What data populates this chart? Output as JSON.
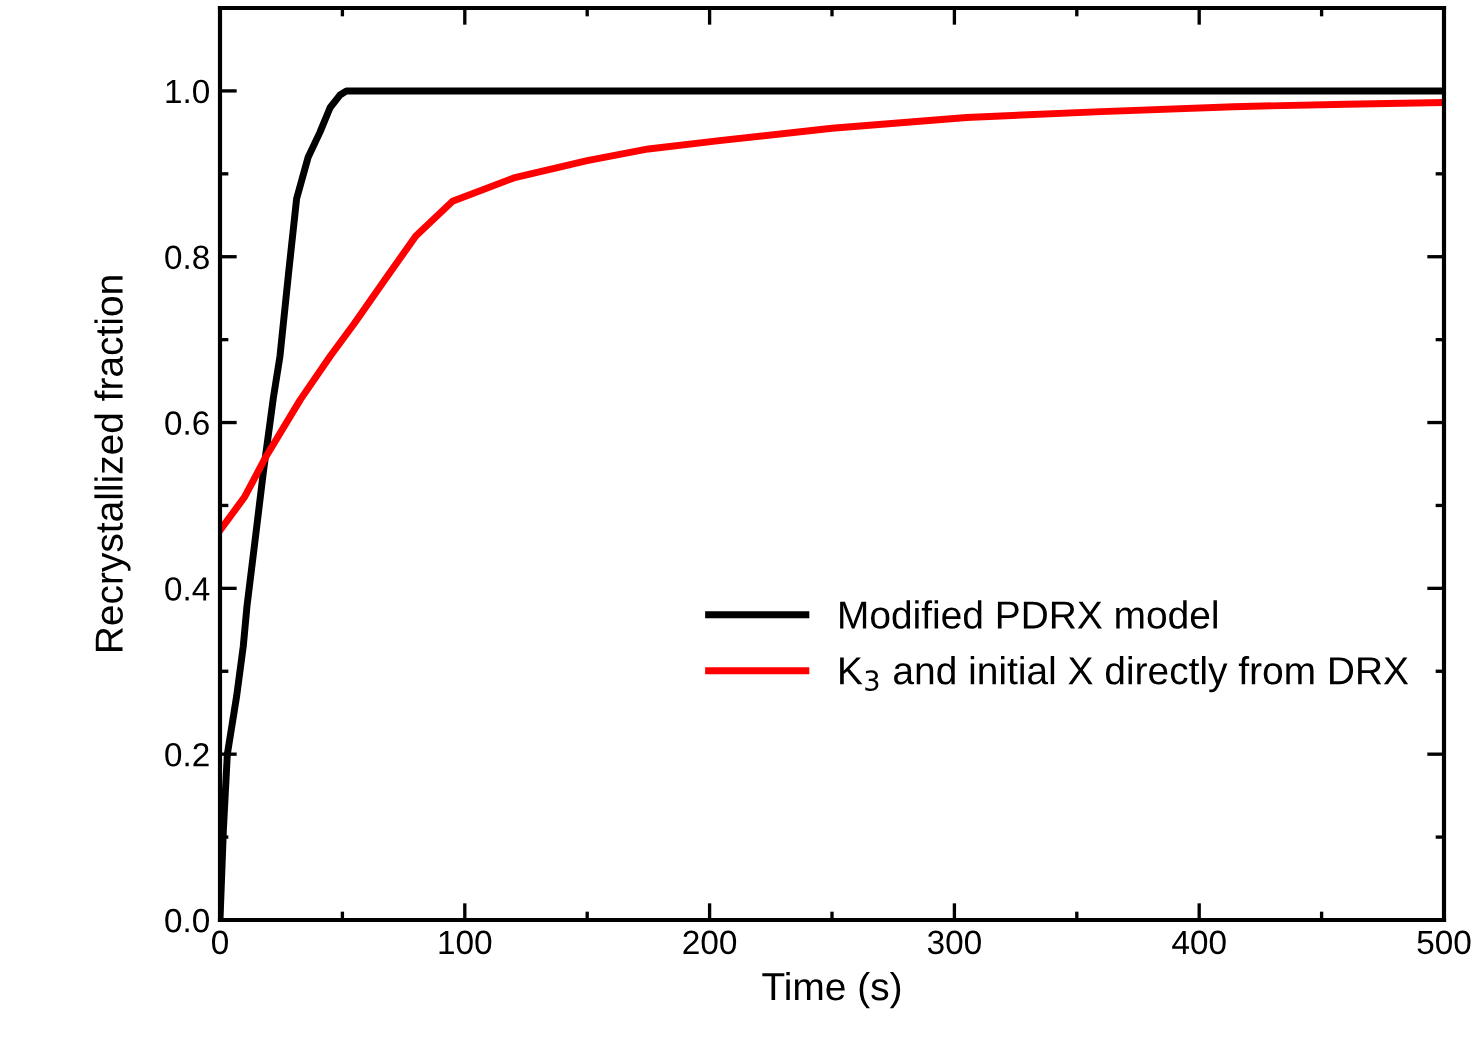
{
  "chart_data": {
    "type": "line",
    "xlabel": "Time (s)",
    "ylabel": "Recrystallized fraction",
    "xlim": [
      0,
      500
    ],
    "xticks": [
      0,
      100,
      200,
      300,
      400,
      500
    ],
    "ylim": [
      0,
      1.1
    ],
    "yticks": [
      {
        "value": 0,
        "label": "0.0"
      },
      0.2,
      0.4,
      0.6,
      0.8,
      {
        "value": 1,
        "label": "1.0"
      }
    ],
    "grid": false,
    "legend": "center right",
    "marker": "none",
    "line_style": "solid",
    "series": [
      {
        "name": "Modified PDRX model",
        "color": "#000000",
        "x": [
          0,
          1.4,
          3,
          6.8,
          9.5,
          11,
          14,
          17.7,
          21.8,
          24.5,
          28,
          31.3,
          36,
          40.8,
          45,
          49,
          51.7,
          100,
          200,
          300,
          400,
          500
        ],
        "values": [
          0,
          0.11,
          0.2,
          0.27,
          0.33,
          0.378,
          0.45,
          0.54,
          0.63,
          0.68,
          0.78,
          0.87,
          0.92,
          0.95,
          0.98,
          0.995,
          1.0,
          1.0,
          1.0,
          1.0,
          1.0,
          1.0
        ]
      },
      {
        "name": "K$_{3}$ and initial X directly from DRX",
        "color": "#ff0000",
        "x": [
          0,
          10,
          19,
          32.7,
          45,
          55,
          68,
          80,
          95,
          120,
          150,
          175,
          204,
          250,
          305,
          360,
          414,
          460,
          500
        ],
        "values": [
          0.47,
          0.51,
          0.56,
          0.627,
          0.68,
          0.72,
          0.775,
          0.825,
          0.867,
          0.895,
          0.916,
          0.93,
          0.94,
          0.955,
          0.968,
          0.975,
          0.981,
          0.984,
          0.986
        ]
      }
    ]
  }
}
